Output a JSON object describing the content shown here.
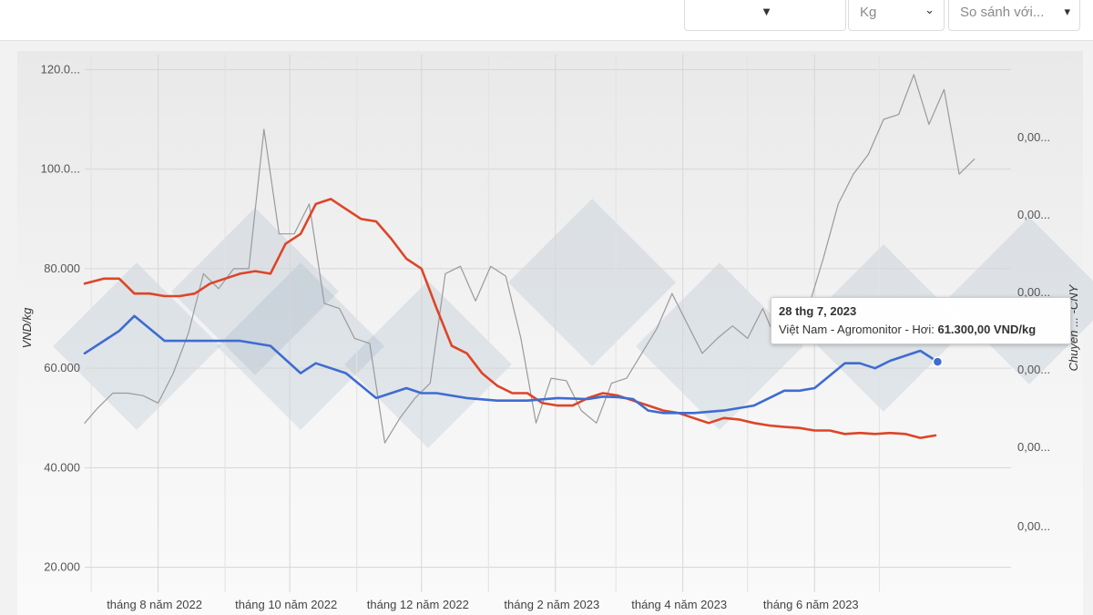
{
  "toolbar": {
    "unit_value": "Kg",
    "compare_placeholder": "So sánh với..."
  },
  "tooltip": {
    "date": "28 thg 7, 2023",
    "series": "Việt Nam - Agromonitor - Hơi:",
    "value": "61.300,00 VND/kg"
  },
  "colors": {
    "blue": "#3e6cd1",
    "red": "#dd4527",
    "gray": "#9a9a9a",
    "watermark": "#5b7f9e"
  },
  "chart_data": {
    "type": "line",
    "ylabel": "VND/kg",
    "y2label": "Chuyển ... -CNY",
    "ylim": [
      15000,
      123000
    ],
    "xlim": [
      "2022-06-28",
      "2023-08-31"
    ],
    "yticks": [
      20000,
      40000,
      60000,
      80000,
      100000,
      120000
    ],
    "ytick_labels": [
      "20.000",
      "40.000",
      "60.000",
      "80.000",
      "100.0...",
      "120.0..."
    ],
    "y2tick_labels": [
      "0,00...",
      "0,00...",
      "0,00...",
      "0,00...",
      "0,00...",
      "0,00..."
    ],
    "xticks": [
      "2022-08-01",
      "2022-10-01",
      "2022-12-01",
      "2023-02-01",
      "2023-04-01",
      "2023-06-01"
    ],
    "xtick_labels": [
      "tháng 8 năm 2022",
      "tháng 10 năm 2022",
      "tháng 12 năm 2022",
      "tháng 2 năm 2023",
      "tháng 4 năm 2023",
      "tháng 6 năm 2023"
    ],
    "grid": true,
    "series": [
      {
        "name": "Việt Nam - Agromonitor - Hơi",
        "color": "#3e6cd1",
        "x": [
          "2022-06-28",
          "2022-07-14",
          "2022-07-21",
          "2022-08-04",
          "2022-08-11",
          "2022-08-25",
          "2022-09-08",
          "2022-09-22",
          "2022-10-06",
          "2022-10-13",
          "2022-10-27",
          "2022-11-10",
          "2022-11-24",
          "2022-12-01",
          "2022-12-08",
          "2022-12-22",
          "2023-01-05",
          "2023-01-19",
          "2023-02-02",
          "2023-02-16",
          "2023-02-23",
          "2023-03-02",
          "2023-03-09",
          "2023-03-16",
          "2023-03-23",
          "2023-04-06",
          "2023-04-20",
          "2023-05-04",
          "2023-05-18",
          "2023-05-25",
          "2023-06-01",
          "2023-06-15",
          "2023-06-22",
          "2023-06-29",
          "2023-07-06",
          "2023-07-13",
          "2023-07-20",
          "2023-07-28"
        ],
        "values": [
          63000,
          67500,
          70500,
          65500,
          65500,
          65500,
          65500,
          64500,
          59000,
          61000,
          59000,
          54000,
          56000,
          55000,
          55000,
          54000,
          53500,
          53500,
          54000,
          53800,
          54300,
          54200,
          53800,
          51500,
          51000,
          51000,
          51500,
          52500,
          55500,
          55500,
          56000,
          61000,
          61000,
          60000,
          61500,
          62500,
          63500,
          61300
        ]
      },
      {
        "name": "",
        "color": "#dd4527",
        "x": [
          "2022-06-28",
          "2022-07-07",
          "2022-07-14",
          "2022-07-21",
          "2022-07-28",
          "2022-08-04",
          "2022-08-11",
          "2022-08-18",
          "2022-08-25",
          "2022-09-01",
          "2022-09-08",
          "2022-09-15",
          "2022-09-22",
          "2022-09-29",
          "2022-10-06",
          "2022-10-13",
          "2022-10-20",
          "2022-10-27",
          "2022-11-03",
          "2022-11-10",
          "2022-11-17",
          "2022-11-24",
          "2022-12-01",
          "2022-12-08",
          "2022-12-15",
          "2022-12-22",
          "2022-12-29",
          "2023-01-05",
          "2023-01-12",
          "2023-01-19",
          "2023-01-26",
          "2023-02-02",
          "2023-02-09",
          "2023-02-16",
          "2023-02-23",
          "2023-03-02",
          "2023-03-09",
          "2023-03-16",
          "2023-03-23",
          "2023-03-30",
          "2023-04-06",
          "2023-04-13",
          "2023-04-20",
          "2023-04-27",
          "2023-05-04",
          "2023-05-11",
          "2023-05-18",
          "2023-05-25",
          "2023-06-01",
          "2023-06-08",
          "2023-06-15",
          "2023-06-22",
          "2023-06-29",
          "2023-07-06",
          "2023-07-13",
          "2023-07-20",
          "2023-07-27"
        ],
        "values": [
          77000,
          78000,
          78000,
          75000,
          75000,
          74500,
          74500,
          75000,
          77000,
          78000,
          79000,
          79500,
          79000,
          85000,
          87000,
          93000,
          94000,
          92000,
          90000,
          89500,
          86000,
          82000,
          80000,
          72000,
          64500,
          63000,
          59000,
          56500,
          55000,
          55000,
          53000,
          52500,
          52500,
          54000,
          55000,
          54500,
          53500,
          52500,
          51500,
          51000,
          50000,
          49000,
          50000,
          49700,
          49000,
          48500,
          48200,
          48000,
          47500,
          47500,
          46800,
          47000,
          46800,
          47000,
          46800,
          46000,
          46500
        ]
      },
      {
        "name": "",
        "color": "#9a9a9a",
        "x": [
          "2022-06-28",
          "2022-07-04",
          "2022-07-11",
          "2022-07-18",
          "2022-07-25",
          "2022-08-01",
          "2022-08-08",
          "2022-08-15",
          "2022-08-22",
          "2022-08-29",
          "2022-09-05",
          "2022-09-12",
          "2022-09-19",
          "2022-09-26",
          "2022-10-03",
          "2022-10-10",
          "2022-10-17",
          "2022-10-24",
          "2022-10-31",
          "2022-11-07",
          "2022-11-14",
          "2022-11-21",
          "2022-11-28",
          "2022-12-05",
          "2022-12-12",
          "2022-12-19",
          "2022-12-26",
          "2023-01-02",
          "2023-01-09",
          "2023-01-16",
          "2023-01-23",
          "2023-01-30",
          "2023-02-06",
          "2023-02-13",
          "2023-02-20",
          "2023-02-27",
          "2023-03-06",
          "2023-03-13",
          "2023-03-20",
          "2023-03-27",
          "2023-04-03",
          "2023-04-10",
          "2023-04-17",
          "2023-04-24",
          "2023-05-01",
          "2023-05-08",
          "2023-05-15",
          "2023-05-22",
          "2023-05-29",
          "2023-06-05",
          "2023-06-12",
          "2023-06-19",
          "2023-06-26",
          "2023-07-03",
          "2023-07-10",
          "2023-07-17",
          "2023-07-24",
          "2023-07-31",
          "2023-08-07",
          "2023-08-14"
        ],
        "values": [
          49000,
          52000,
          55000,
          55000,
          54500,
          53000,
          59000,
          67000,
          79000,
          76000,
          80000,
          80000,
          108000,
          87000,
          87000,
          93000,
          73000,
          72000,
          66000,
          65000,
          45000,
          50000,
          54000,
          57000,
          79000,
          80500,
          73500,
          80500,
          78500,
          66000,
          49000,
          58000,
          57500,
          51500,
          49000,
          57000,
          58000,
          63000,
          68000,
          75000,
          69000,
          63000,
          66000,
          68500,
          66000,
          72000,
          65000,
          67000,
          72000,
          82000,
          93000,
          99000,
          103000,
          110000,
          111000,
          119000,
          109000,
          116000,
          99000,
          102000
        ]
      }
    ]
  }
}
